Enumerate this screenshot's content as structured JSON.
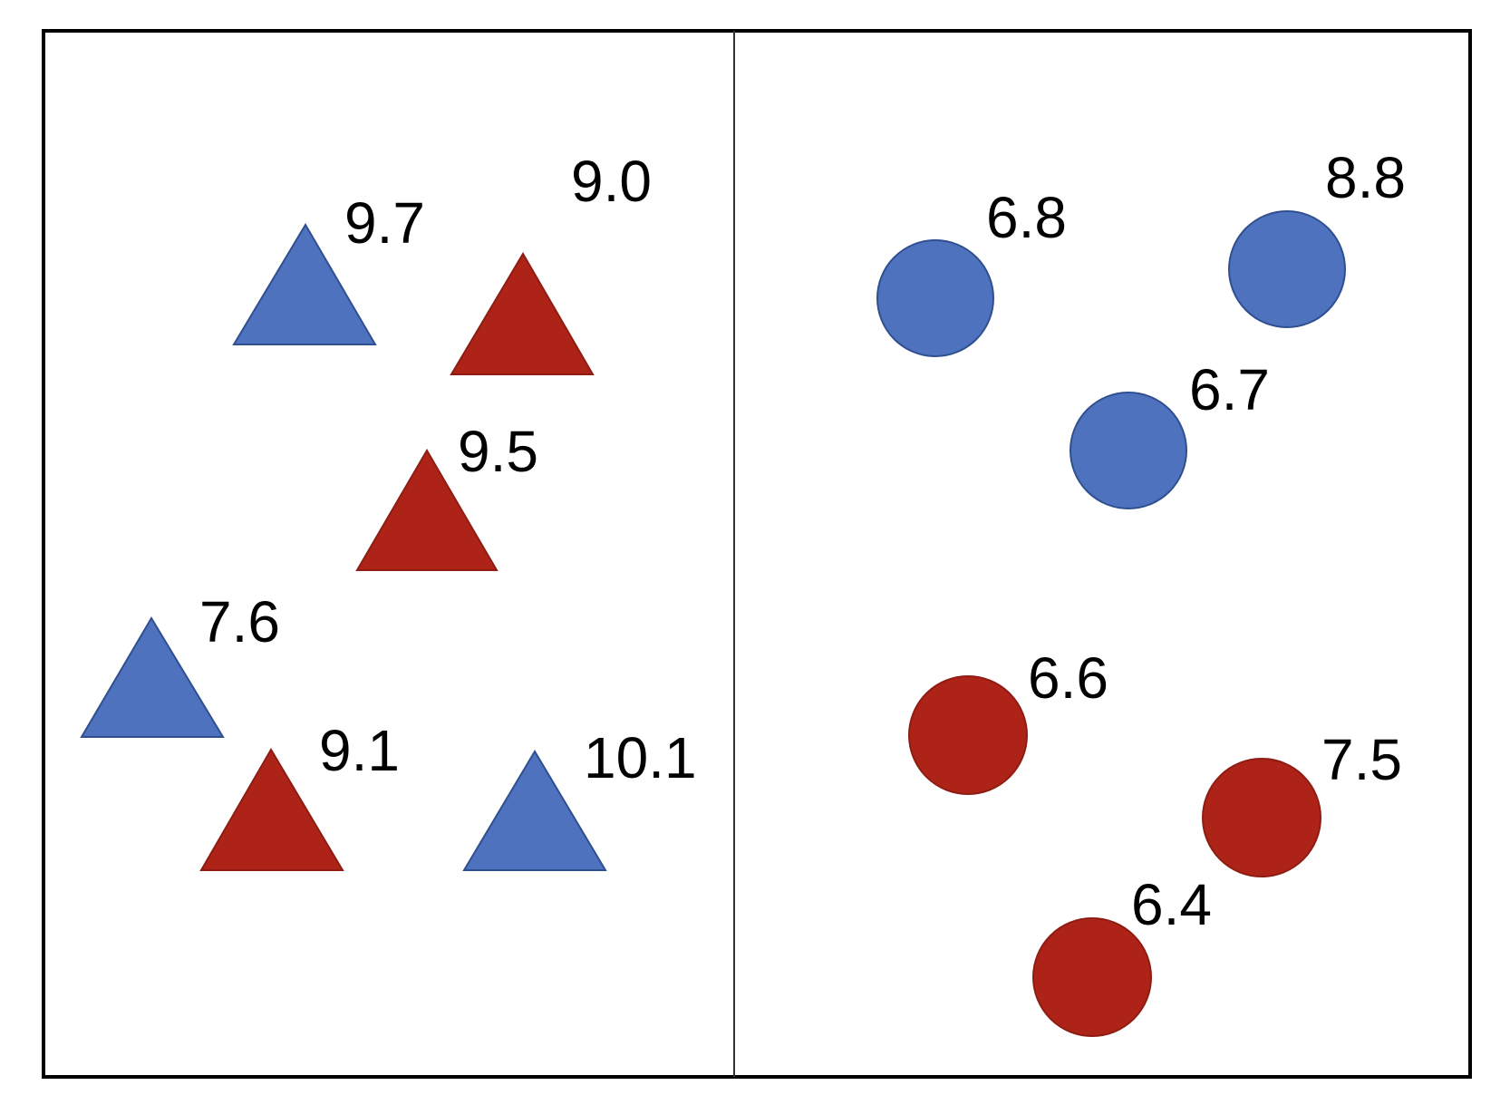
{
  "colors": {
    "blue": "#4E72BE",
    "blue_stroke": "#2F4F8F",
    "red": "#AD2318",
    "red_stroke": "#8F1C13",
    "border": "#000000",
    "divider": "#333333"
  },
  "left_panel": {
    "shape": "triangle",
    "items": [
      {
        "color": "blue",
        "label": "9.7"
      },
      {
        "color": "red",
        "label": "9.0"
      },
      {
        "color": "red",
        "label": "9.5"
      },
      {
        "color": "blue",
        "label": "7.6"
      },
      {
        "color": "red",
        "label": "9.1"
      },
      {
        "color": "blue",
        "label": "10.1"
      }
    ]
  },
  "right_panel": {
    "shape": "circle",
    "items": [
      {
        "color": "blue",
        "label": "6.8"
      },
      {
        "color": "blue",
        "label": "8.8"
      },
      {
        "color": "blue",
        "label": "6.7"
      },
      {
        "color": "red",
        "label": "6.6"
      },
      {
        "color": "red",
        "label": "7.5"
      },
      {
        "color": "red",
        "label": "6.4"
      }
    ]
  }
}
